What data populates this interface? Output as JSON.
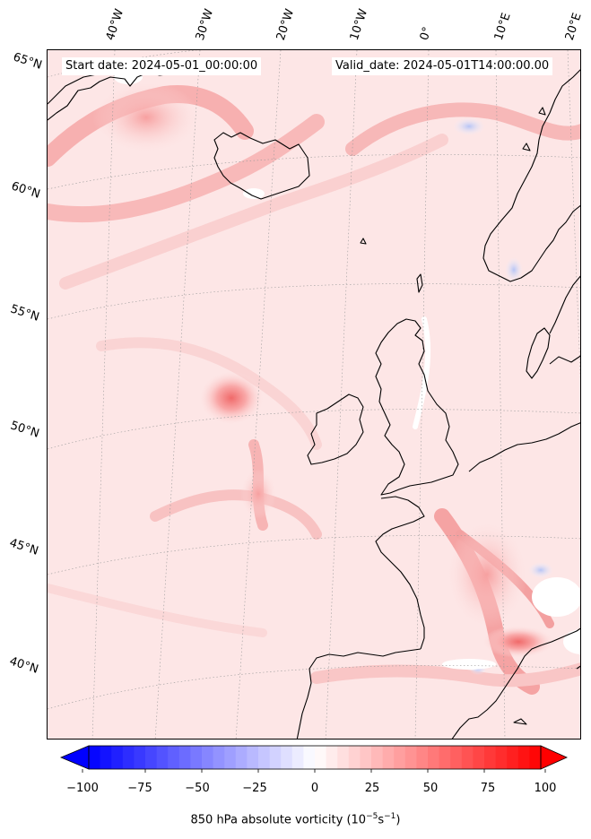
{
  "map": {
    "start_date": "Start date: 2024-05-01_00:00:00",
    "valid_date": "Valid_date: 2024-05-01T14:00:00.00",
    "lon_labels": [
      "40°W",
      "30°W",
      "20°W",
      "10°W",
      "0°",
      "10°E",
      "20°E"
    ],
    "lat_labels": [
      "65°N",
      "60°N",
      "55°N",
      "50°N",
      "45°N",
      "40°N"
    ],
    "field": "850 hPa absolute vorticity",
    "background_color": "#fde3e3",
    "coastline_color": "#000000"
  },
  "colorbar": {
    "label": "850 hPa absolute vorticity (10",
    "label_exp1": "−5",
    "label_mid": "s",
    "label_exp2": "−1",
    "label_end": ")",
    "ticks": [
      "−100",
      "−75",
      "−50",
      "−25",
      "0",
      "25",
      "50",
      "75",
      "100"
    ],
    "min": -100,
    "max": 100,
    "colors": {
      "negative": "#0000ff",
      "zero": "#ffffff",
      "positive": "#ff0000"
    }
  }
}
